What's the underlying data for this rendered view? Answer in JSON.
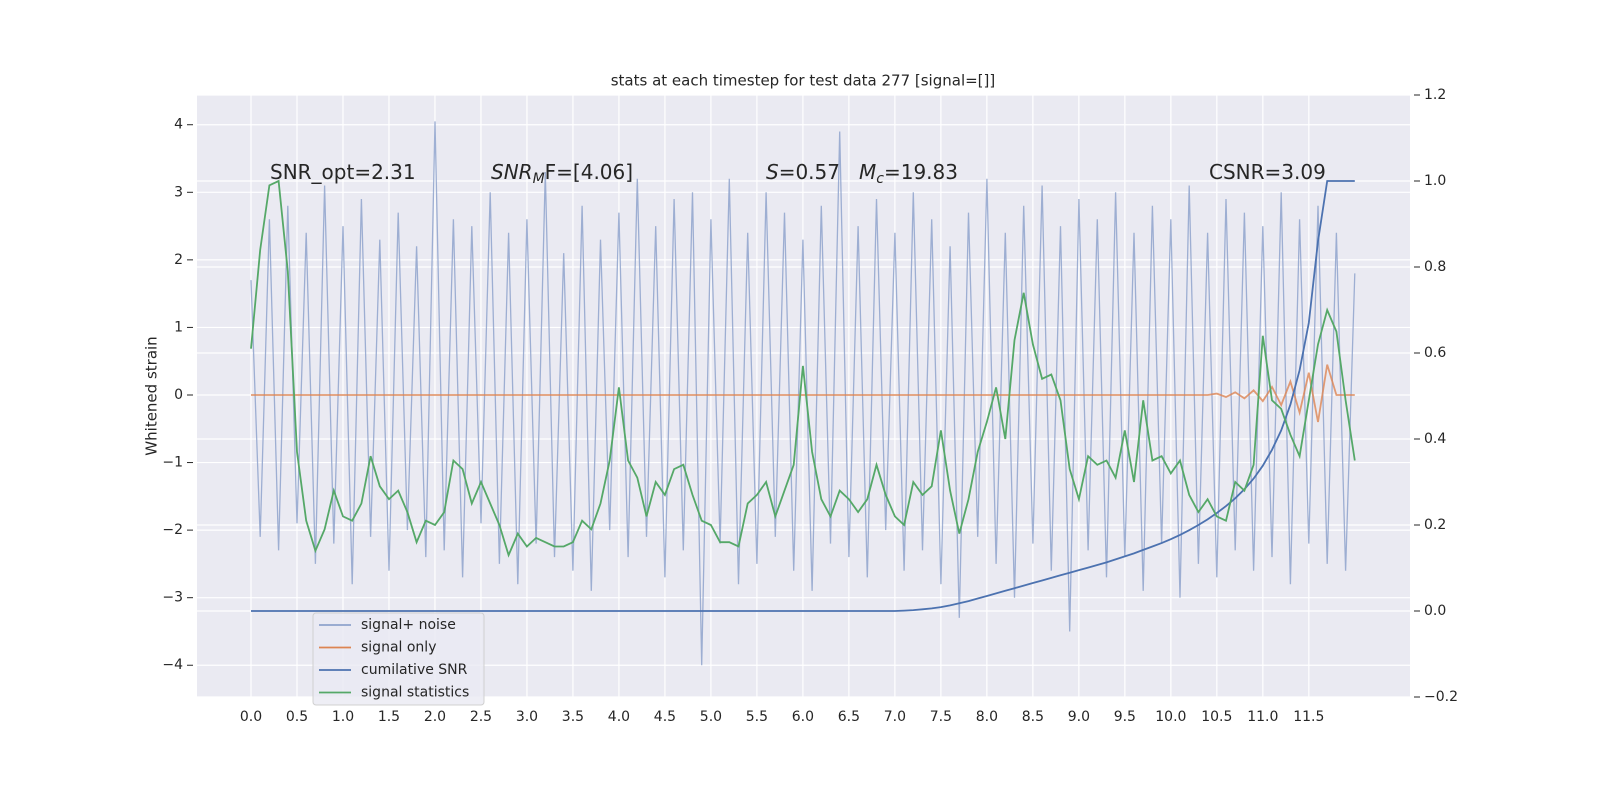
{
  "chart_data": {
    "type": "line",
    "title": "stats at each timestep for test data 277 [signal=[]]",
    "ylabel": "Whitened strain",
    "annotations": [
      {
        "parts": [
          "SNR_opt=2.31"
        ]
      },
      {
        "parts": [
          "SNR",
          "M",
          "F=[4.06]"
        ]
      },
      {
        "parts": [
          "S",
          "=0.57"
        ]
      },
      {
        "parts": [
          "M",
          "c",
          "=19.83"
        ]
      },
      {
        "parts": [
          "CSNR=3.09"
        ]
      }
    ],
    "x": [
      0,
      0.1,
      0.2,
      0.3,
      0.4,
      0.5,
      0.6,
      0.7,
      0.8,
      0.9,
      1,
      1.1,
      1.2,
      1.3,
      1.4,
      1.5,
      1.6,
      1.7,
      1.8,
      1.9,
      2,
      2.1,
      2.2,
      2.3,
      2.4,
      2.5,
      2.6,
      2.7,
      2.8,
      2.9,
      3,
      3.1,
      3.2,
      3.3,
      3.4,
      3.5,
      3.6,
      3.7,
      3.8,
      3.9,
      4,
      4.1,
      4.2,
      4.3,
      4.4,
      4.5,
      4.6,
      4.7,
      4.8,
      4.9,
      5,
      5.1,
      5.2,
      5.3,
      5.4,
      5.5,
      5.6,
      5.7,
      5.8,
      5.9,
      6,
      6.1,
      6.2,
      6.3,
      6.4,
      6.5,
      6.6,
      6.7,
      6.8,
      6.9,
      7,
      7.1,
      7.2,
      7.3,
      7.4,
      7.5,
      7.6,
      7.7,
      7.8,
      7.9,
      8,
      8.1,
      8.2,
      8.3,
      8.4,
      8.5,
      8.6,
      8.7,
      8.8,
      8.9,
      9,
      9.1,
      9.2,
      9.3,
      9.4,
      9.5,
      9.6,
      9.7,
      9.8,
      9.9,
      10,
      10.1,
      10.2,
      10.3,
      10.4,
      10.5,
      10.6,
      10.7,
      10.8,
      10.9,
      11,
      11.1,
      11.2,
      11.3,
      11.4,
      11.5,
      11.6,
      11.7,
      11.8,
      11.9,
      12
    ],
    "series": [
      {
        "name": "signal+ noise",
        "color": "#8fa3cc",
        "axis": "y",
        "values": [
          1.7,
          -2.1,
          2.6,
          -2.3,
          2.8,
          -1.9,
          2.4,
          -2.5,
          3.1,
          -2.2,
          2.5,
          -2.8,
          2.9,
          -2.1,
          2.3,
          -2.6,
          2.7,
          -2.0,
          2.2,
          -2.4,
          4.05,
          -2.3,
          2.6,
          -2.7,
          2.5,
          -1.9,
          3.0,
          -2.5,
          2.4,
          -2.8,
          2.6,
          -2.2,
          3.3,
          -2.4,
          2.1,
          -2.6,
          2.8,
          -2.9,
          2.3,
          -2.0,
          2.7,
          -2.4,
          3.2,
          -2.1,
          2.5,
          -2.7,
          2.9,
          -2.3,
          3.0,
          -4.0,
          2.6,
          -2.2,
          3.2,
          -2.8,
          2.4,
          -2.5,
          3.0,
          -2.1,
          2.7,
          -2.6,
          2.3,
          -2.9,
          2.8,
          -2.2,
          3.9,
          -2.4,
          2.5,
          -2.7,
          2.9,
          -2.0,
          2.4,
          -2.6,
          3.0,
          -2.3,
          2.6,
          -2.8,
          2.2,
          -3.3,
          2.7,
          -2.1,
          3.2,
          -2.5,
          2.4,
          -3.0,
          2.8,
          -2.2,
          3.1,
          -2.6,
          2.5,
          -3.5,
          2.9,
          -2.3,
          2.6,
          -2.7,
          3.0,
          -2.4,
          2.4,
          -2.9,
          2.8,
          -2.2,
          2.6,
          -3.0,
          3.1,
          -2.5,
          2.4,
          -2.7,
          2.9,
          -2.3,
          2.7,
          -2.6,
          2.5,
          -2.4,
          3.0,
          -2.8,
          2.6,
          -2.2,
          2.8,
          -2.5,
          2.4,
          -2.6,
          1.8
        ]
      },
      {
        "name": "signal only",
        "color": "#dd8452",
        "axis": "y",
        "values": [
          0,
          0,
          0,
          0,
          0,
          0,
          0,
          0,
          0,
          0,
          0,
          0,
          0,
          0,
          0,
          0,
          0,
          0,
          0,
          0,
          0,
          0,
          0,
          0,
          0,
          0,
          0,
          0,
          0,
          0,
          0,
          0,
          0,
          0,
          0,
          0,
          0,
          0,
          0,
          0,
          0,
          0,
          0,
          0,
          0,
          0,
          0,
          0,
          0,
          0,
          0,
          0,
          0,
          0,
          0,
          0,
          0,
          0,
          0,
          0,
          0,
          0,
          0,
          0,
          0,
          0,
          0,
          0,
          0,
          0,
          0,
          0,
          0,
          0,
          0,
          0,
          0,
          0,
          0,
          0,
          0,
          0,
          0,
          0,
          0,
          0,
          0,
          0,
          0,
          0,
          0,
          0,
          0,
          0,
          0,
          0,
          0,
          0,
          0,
          0,
          0,
          0,
          0,
          0,
          0,
          0.02,
          -0.03,
          0.04,
          -0.05,
          0.07,
          -0.09,
          0.12,
          -0.15,
          0.2,
          -0.26,
          0.33,
          -0.4,
          0.45,
          0,
          0,
          0
        ]
      },
      {
        "name": "cumilative SNR",
        "color": "#4c72b0",
        "axis": "y2",
        "values": [
          0,
          0,
          0,
          0,
          0,
          0,
          0,
          0,
          0,
          0,
          0,
          0,
          0,
          0,
          0,
          0,
          0,
          0,
          0,
          0,
          0,
          0,
          0,
          0,
          0,
          0,
          0,
          0,
          0,
          0,
          0,
          0,
          0,
          0,
          0,
          0,
          0,
          0,
          0,
          0,
          0,
          0,
          0,
          0,
          0,
          0,
          0,
          0,
          0,
          0,
          0,
          0,
          0,
          0,
          0,
          0,
          0,
          0,
          0,
          0,
          0,
          0,
          0,
          0,
          0,
          0,
          0,
          0,
          0,
          0,
          0,
          0.001,
          0.002,
          0.004,
          0.006,
          0.009,
          0.013,
          0.018,
          0.023,
          0.029,
          0.035,
          0.041,
          0.047,
          0.053,
          0.059,
          0.065,
          0.071,
          0.077,
          0.083,
          0.089,
          0.095,
          0.101,
          0.107,
          0.113,
          0.12,
          0.127,
          0.134,
          0.142,
          0.15,
          0.158,
          0.167,
          0.177,
          0.188,
          0.2,
          0.213,
          0.228,
          0.244,
          0.262,
          0.283,
          0.308,
          0.338,
          0.375,
          0.42,
          0.48,
          0.56,
          0.67,
          0.86,
          1.0,
          1.0,
          1.0,
          1.0
        ]
      },
      {
        "name": "signal statistics",
        "color": "#55a868",
        "axis": "y2",
        "values": [
          0.61,
          0.84,
          0.99,
          1.0,
          0.79,
          0.37,
          0.21,
          0.14,
          0.19,
          0.28,
          0.22,
          0.21,
          0.25,
          0.36,
          0.29,
          0.26,
          0.28,
          0.23,
          0.16,
          0.21,
          0.2,
          0.23,
          0.35,
          0.33,
          0.25,
          0.3,
          0.25,
          0.2,
          0.13,
          0.18,
          0.15,
          0.17,
          0.16,
          0.15,
          0.15,
          0.16,
          0.21,
          0.19,
          0.25,
          0.35,
          0.52,
          0.35,
          0.31,
          0.22,
          0.3,
          0.27,
          0.33,
          0.34,
          0.27,
          0.21,
          0.2,
          0.16,
          0.16,
          0.15,
          0.25,
          0.27,
          0.3,
          0.22,
          0.28,
          0.34,
          0.57,
          0.37,
          0.26,
          0.22,
          0.28,
          0.26,
          0.23,
          0.26,
          0.34,
          0.27,
          0.22,
          0.2,
          0.3,
          0.27,
          0.29,
          0.42,
          0.28,
          0.18,
          0.26,
          0.37,
          0.44,
          0.52,
          0.4,
          0.63,
          0.74,
          0.62,
          0.54,
          0.55,
          0.49,
          0.33,
          0.26,
          0.36,
          0.34,
          0.35,
          0.31,
          0.42,
          0.3,
          0.49,
          0.35,
          0.36,
          0.32,
          0.35,
          0.27,
          0.23,
          0.26,
          0.22,
          0.21,
          0.3,
          0.28,
          0.34,
          0.64,
          0.49,
          0.47,
          0.41,
          0.36,
          0.49,
          0.62,
          0.7,
          0.65,
          0.49,
          0.35
        ]
      }
    ],
    "xlim": [
      -0.587,
      12.6
    ],
    "xticks": [
      {
        "value": 0,
        "label": "0.0"
      },
      0.5,
      {
        "value": 1,
        "label": "1.0"
      },
      1.5,
      {
        "value": 2,
        "label": "2.0"
      },
      2.5,
      {
        "value": 3,
        "label": "3.0"
      },
      3.5,
      {
        "value": 4,
        "label": "4.0"
      },
      4.5,
      {
        "value": 5,
        "label": "5.0"
      },
      5.5,
      {
        "value": 6,
        "label": "6.0"
      },
      6.5,
      {
        "value": 7,
        "label": "7.0"
      },
      7.5,
      {
        "value": 8,
        "label": "8.0"
      },
      8.5,
      {
        "value": 9,
        "label": "9.0"
      },
      9.5,
      {
        "value": 10,
        "label": "10.0"
      },
      10.5,
      {
        "value": 11,
        "label": "11.0"
      },
      11.5
    ],
    "ylim": [
      -4.47,
      4.44
    ],
    "yticks": [
      -4,
      -3,
      -2,
      -1,
      0,
      1,
      2,
      3,
      4
    ],
    "y2lim": [
      -0.2,
      1.2
    ],
    "y2ticks": [
      -0.2,
      {
        "value": 0,
        "label": "0.0"
      },
      0.2,
      0.4,
      0.6,
      0.8,
      {
        "value": 1,
        "label": "1.0"
      },
      1.2
    ],
    "grid": true,
    "legend": "lower left"
  }
}
